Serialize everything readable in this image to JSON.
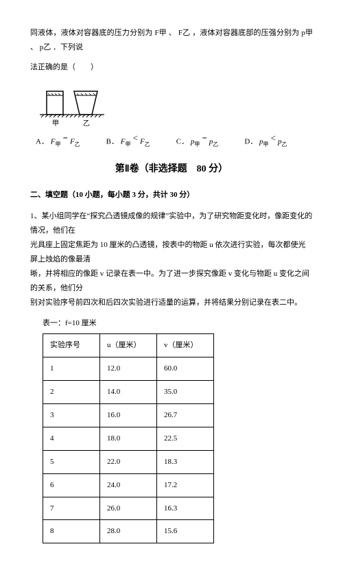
{
  "intro": {
    "line1": "同液体，液体对容器底的压力分别为 F甲 、 F乙 ，液体对容器底部的压强分别为 p甲 、 p乙 ．下列说",
    "line2": "法正确的是（　　）"
  },
  "figure": {
    "label_left": "甲",
    "label_right": "乙",
    "hatch_color": "#000000",
    "line_color": "#000000"
  },
  "options": {
    "A_prefix": "A．",
    "A_expr_left": "F",
    "A_sub_left": "甲",
    "A_op": "＝",
    "A_expr_right": "F",
    "A_sub_right": "乙",
    "B_prefix": "B．",
    "B_expr_left": "F",
    "B_sub_left": "甲",
    "B_op": "＜",
    "B_expr_right": "F",
    "B_sub_right": "乙",
    "C_prefix": "C．",
    "C_expr_left": "p",
    "C_sub_left": "甲",
    "C_op": "＝",
    "C_expr_right": "p",
    "C_sub_right": "乙",
    "D_prefix": "D．",
    "D_expr_left": "p",
    "D_sub_left": "甲",
    "D_op": "＜",
    "D_expr_right": "p",
    "D_sub_right": "乙"
  },
  "section_title": "第Ⅱ卷（非选择题　80 分）",
  "subsection": "二、填空题（10 小题，每小题 3 分，共计 30 分）",
  "question": {
    "num": "1、",
    "l1": "某小组同学在“探究凸透镜成像的规律”实验中，为了研究物距变化时，像距变化的情况，他们在",
    "l2": "光具座上固定焦距为 10 厘米的凸透镜，按表中的物距 u 依次进行实验，每次都使光屏上烛焰的像最清",
    "l3": "晰，并将相应的像距 v 记录在表一中。为了进一步探究像距 v 变化与物距 u 变化之间的关系，他们分",
    "l4": "别对实验序号前四次和后四次实验进行适量的运算，并将结果分别记录在表二中。"
  },
  "table": {
    "caption": "表一：f=10 厘米",
    "headers": [
      "实验序号",
      "u（厘米）",
      "v（厘米）"
    ],
    "rows": [
      [
        "1",
        "12.0",
        "60.0"
      ],
      [
        "2",
        "14.0",
        "35.0"
      ],
      [
        "3",
        "16.0",
        "26.7"
      ],
      [
        "4",
        "18.0",
        "22.5"
      ],
      [
        "5",
        "22.0",
        "18.3"
      ],
      [
        "6",
        "24.0",
        "17.2"
      ],
      [
        "7",
        "26.0",
        "16.3"
      ],
      [
        "8",
        "28.0",
        "15.6"
      ]
    ]
  }
}
